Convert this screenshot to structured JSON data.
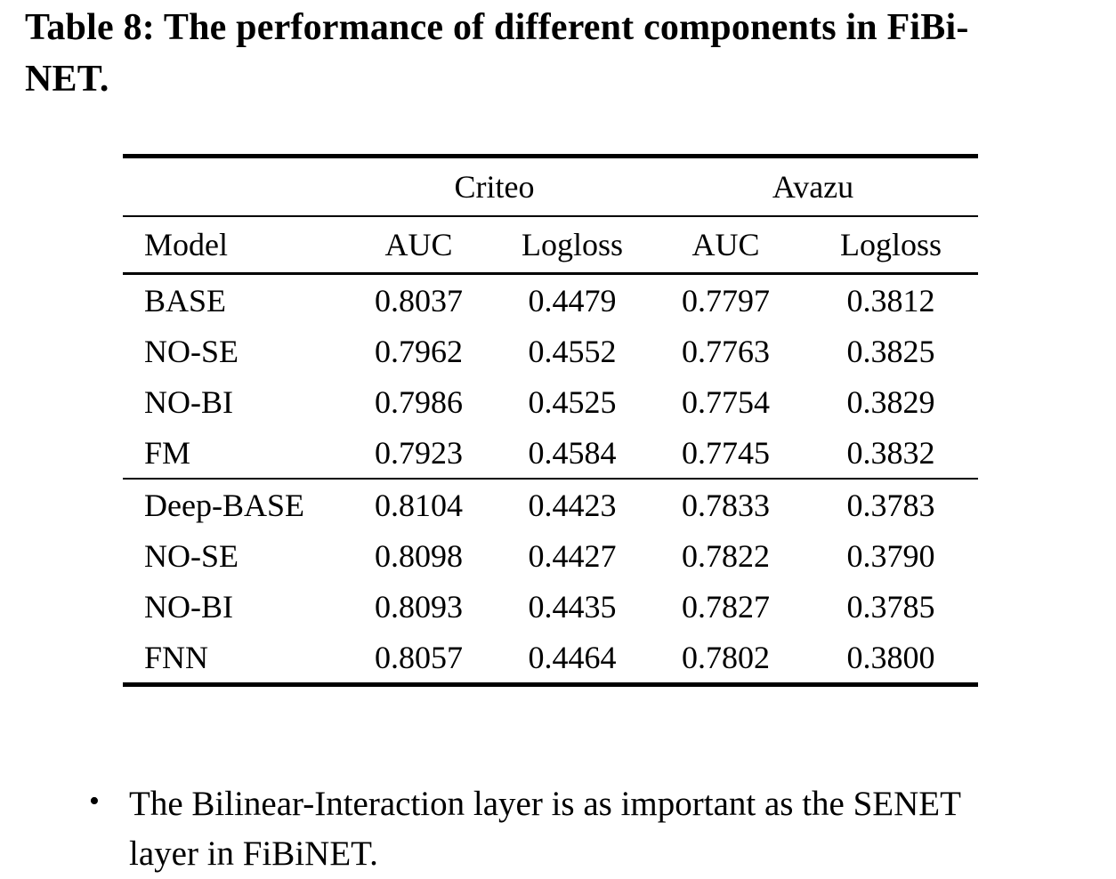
{
  "title": {
    "line1": "Table 8: The performance of different components in FiBi-",
    "line2": "NET."
  },
  "table": {
    "dataset_headers": [
      "Criteo",
      "Avazu"
    ],
    "column_headers": [
      "Model",
      "AUC",
      "Logloss",
      "AUC",
      "Logloss"
    ],
    "rows": [
      [
        "BASE",
        "0.8037",
        "0.4479",
        "0.7797",
        "0.3812"
      ],
      [
        "NO-SE",
        "0.7962",
        "0.4552",
        "0.7763",
        "0.3825"
      ],
      [
        "NO-BI",
        "0.7986",
        "0.4525",
        "0.7754",
        "0.3829"
      ],
      [
        "FM",
        "0.7923",
        "0.4584",
        "0.7745",
        "0.3832"
      ],
      [
        "Deep-BASE",
        "0.8104",
        "0.4423",
        "0.7833",
        "0.3783"
      ],
      [
        "NO-SE",
        "0.8098",
        "0.4427",
        "0.7822",
        "0.3790"
      ],
      [
        "NO-BI",
        "0.8093",
        "0.4435",
        "0.7827",
        "0.3785"
      ],
      [
        "FNN",
        "0.8057",
        "0.4464",
        "0.7802",
        "0.3800"
      ]
    ]
  },
  "bullet": {
    "marker": "•",
    "line1": "The Bilinear-Interaction layer is as important as the SENET",
    "line2": "layer in FiBiNET."
  },
  "colors": {
    "text": "#000000",
    "background": "#ffffff",
    "rule": "#000000"
  }
}
